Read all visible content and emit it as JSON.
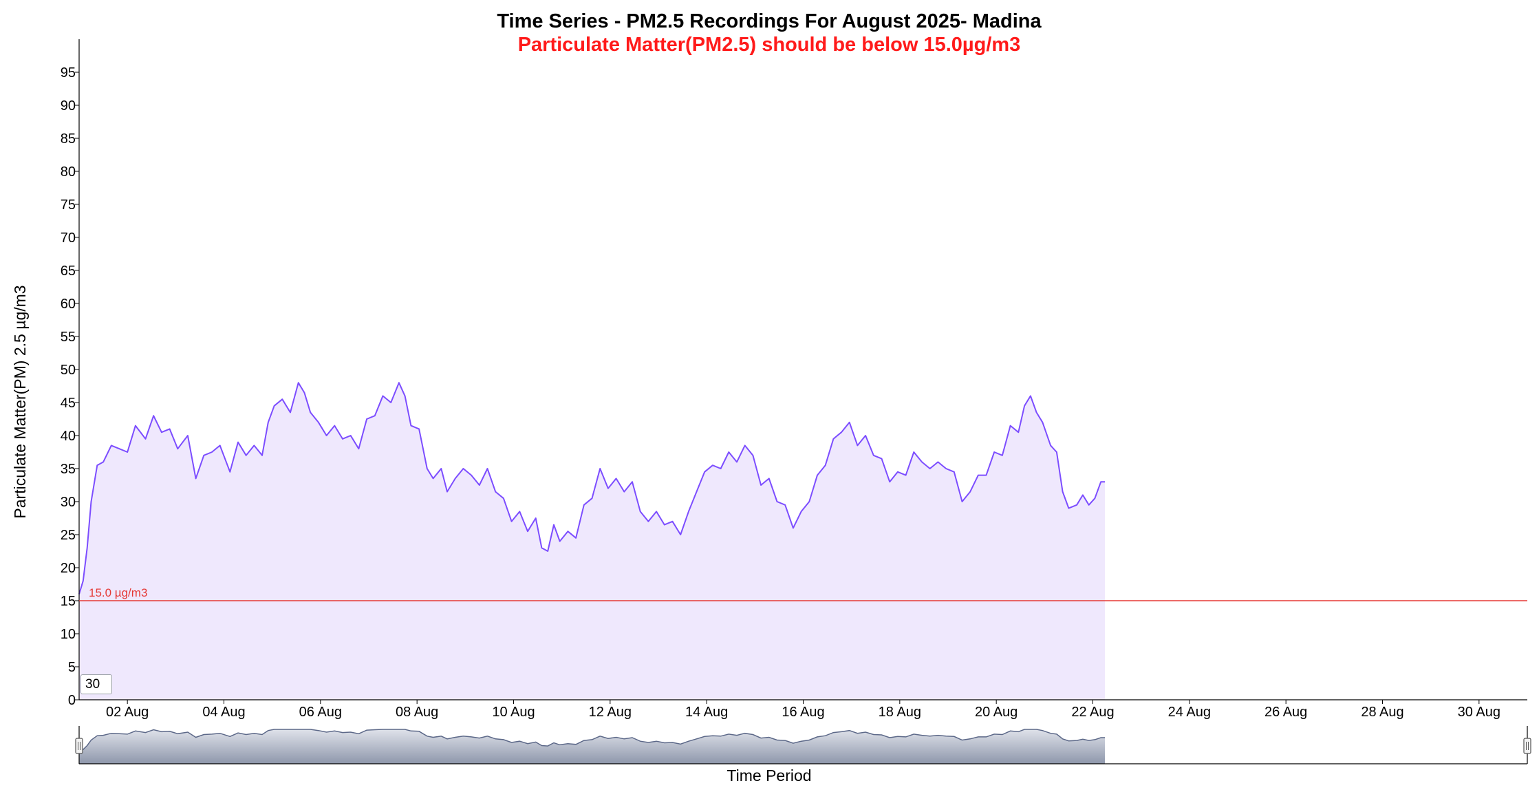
{
  "chart_data": {
    "type": "area",
    "title": "Time Series - PM2.5 Recordings For August 2025- Madina",
    "subtitle": "Particulate Matter(PM2.5) should be below 15.0µg/m3",
    "xlabel": "Time Period",
    "ylabel": "Particulate Matter(PM) 2.5 µg/m3",
    "ylim": [
      0,
      100
    ],
    "yticks": [
      0,
      5,
      10,
      15,
      20,
      25,
      30,
      35,
      40,
      45,
      50,
      55,
      60,
      65,
      70,
      75,
      80,
      85,
      90,
      95
    ],
    "xlim": [
      "2025-08-01",
      "2025-08-31"
    ],
    "xticks": [
      {
        "date": "2025-08-02",
        "label": "02 Aug"
      },
      {
        "date": "2025-08-04",
        "label": "04 Aug"
      },
      {
        "date": "2025-08-06",
        "label": "06 Aug"
      },
      {
        "date": "2025-08-08",
        "label": "08 Aug"
      },
      {
        "date": "2025-08-10",
        "label": "10 Aug"
      },
      {
        "date": "2025-08-12",
        "label": "12 Aug"
      },
      {
        "date": "2025-08-14",
        "label": "14 Aug"
      },
      {
        "date": "2025-08-16",
        "label": "16 Aug"
      },
      {
        "date": "2025-08-18",
        "label": "18 Aug"
      },
      {
        "date": "2025-08-20",
        "label": "20 Aug"
      },
      {
        "date": "2025-08-22",
        "label": "22 Aug"
      },
      {
        "date": "2025-08-24",
        "label": "24 Aug"
      },
      {
        "date": "2025-08-26",
        "label": "26 Aug"
      },
      {
        "date": "2025-08-28",
        "label": "28 Aug"
      },
      {
        "date": "2025-08-30",
        "label": "30 Aug"
      }
    ],
    "threshold": {
      "value": 15.0,
      "label": "15.0 µg/m3",
      "color": "#e53935"
    },
    "series": [
      {
        "color": "#7c4dff",
        "fill": "#efe8fd",
        "points": [
          [
            "2025-08-01 00:00",
            16
          ],
          [
            "2025-08-01 02:00",
            18
          ],
          [
            "2025-08-01 04:00",
            23
          ],
          [
            "2025-08-01 06:00",
            30
          ],
          [
            "2025-08-01 09:00",
            35.5
          ],
          [
            "2025-08-01 12:00",
            36
          ],
          [
            "2025-08-01 16:00",
            38.5
          ],
          [
            "2025-08-01 20:00",
            38
          ],
          [
            "2025-08-02 00:00",
            37.5
          ],
          [
            "2025-08-02 04:00",
            41.5
          ],
          [
            "2025-08-02 09:00",
            39.5
          ],
          [
            "2025-08-02 13:00",
            43
          ],
          [
            "2025-08-02 17:00",
            40.5
          ],
          [
            "2025-08-02 21:00",
            41
          ],
          [
            "2025-08-03 01:00",
            38
          ],
          [
            "2025-08-03 06:00",
            40
          ],
          [
            "2025-08-03 10:00",
            33.5
          ],
          [
            "2025-08-03 14:00",
            37
          ],
          [
            "2025-08-03 18:00",
            37.5
          ],
          [
            "2025-08-03 22:00",
            38.5
          ],
          [
            "2025-08-04 03:00",
            34.5
          ],
          [
            "2025-08-04 07:00",
            39
          ],
          [
            "2025-08-04 11:00",
            37
          ],
          [
            "2025-08-04 15:00",
            38.5
          ],
          [
            "2025-08-04 19:00",
            37
          ],
          [
            "2025-08-04 22:00",
            42
          ],
          [
            "2025-08-05 01:00",
            44.5
          ],
          [
            "2025-08-05 05:00",
            45.5
          ],
          [
            "2025-08-05 09:00",
            43.5
          ],
          [
            "2025-08-05 13:00",
            48
          ],
          [
            "2025-08-05 16:00",
            46.5
          ],
          [
            "2025-08-05 19:00",
            43.5
          ],
          [
            "2025-08-05 23:00",
            42
          ],
          [
            "2025-08-06 03:00",
            40
          ],
          [
            "2025-08-06 07:00",
            41.5
          ],
          [
            "2025-08-06 11:00",
            39.5
          ],
          [
            "2025-08-06 15:00",
            40
          ],
          [
            "2025-08-06 19:00",
            38
          ],
          [
            "2025-08-06 23:00",
            42.5
          ],
          [
            "2025-08-07 03:00",
            43
          ],
          [
            "2025-08-07 07:00",
            46
          ],
          [
            "2025-08-07 11:00",
            45
          ],
          [
            "2025-08-07 15:00",
            48
          ],
          [
            "2025-08-07 18:00",
            46
          ],
          [
            "2025-08-07 21:00",
            41.5
          ],
          [
            "2025-08-08 01:00",
            41
          ],
          [
            "2025-08-08 05:00",
            35
          ],
          [
            "2025-08-08 08:00",
            33.5
          ],
          [
            "2025-08-08 12:00",
            35
          ],
          [
            "2025-08-08 15:00",
            31.5
          ],
          [
            "2025-08-08 19:00",
            33.5
          ],
          [
            "2025-08-08 23:00",
            35
          ],
          [
            "2025-08-09 03:00",
            34
          ],
          [
            "2025-08-09 07:00",
            32.5
          ],
          [
            "2025-08-09 11:00",
            35
          ],
          [
            "2025-08-09 15:00",
            31.5
          ],
          [
            "2025-08-09 19:00",
            30.5
          ],
          [
            "2025-08-09 23:00",
            27
          ],
          [
            "2025-08-10 03:00",
            28.5
          ],
          [
            "2025-08-10 07:00",
            25.5
          ],
          [
            "2025-08-10 11:00",
            27.5
          ],
          [
            "2025-08-10 14:00",
            23
          ],
          [
            "2025-08-10 17:00",
            22.5
          ],
          [
            "2025-08-10 20:00",
            26.5
          ],
          [
            "2025-08-10 23:00",
            24
          ],
          [
            "2025-08-11 03:00",
            25.5
          ],
          [
            "2025-08-11 07:00",
            24.5
          ],
          [
            "2025-08-11 11:00",
            29.5
          ],
          [
            "2025-08-11 15:00",
            30.5
          ],
          [
            "2025-08-11 19:00",
            35
          ],
          [
            "2025-08-11 23:00",
            32
          ],
          [
            "2025-08-12 03:00",
            33.5
          ],
          [
            "2025-08-12 07:00",
            31.5
          ],
          [
            "2025-08-12 11:00",
            33
          ],
          [
            "2025-08-12 15:00",
            28.5
          ],
          [
            "2025-08-12 19:00",
            27
          ],
          [
            "2025-08-12 23:00",
            28.5
          ],
          [
            "2025-08-13 03:00",
            26.5
          ],
          [
            "2025-08-13 07:00",
            27
          ],
          [
            "2025-08-13 11:00",
            25
          ],
          [
            "2025-08-13 15:00",
            28.5
          ],
          [
            "2025-08-13 19:00",
            31.5
          ],
          [
            "2025-08-13 23:00",
            34.5
          ],
          [
            "2025-08-14 03:00",
            35.5
          ],
          [
            "2025-08-14 07:00",
            35
          ],
          [
            "2025-08-14 11:00",
            37.5
          ],
          [
            "2025-08-14 15:00",
            36
          ],
          [
            "2025-08-14 19:00",
            38.5
          ],
          [
            "2025-08-14 23:00",
            37
          ],
          [
            "2025-08-15 03:00",
            32.5
          ],
          [
            "2025-08-15 07:00",
            33.5
          ],
          [
            "2025-08-15 11:00",
            30
          ],
          [
            "2025-08-15 15:00",
            29.5
          ],
          [
            "2025-08-15 19:00",
            26
          ],
          [
            "2025-08-15 23:00",
            28.5
          ],
          [
            "2025-08-16 03:00",
            30
          ],
          [
            "2025-08-16 07:00",
            34
          ],
          [
            "2025-08-16 11:00",
            35.5
          ],
          [
            "2025-08-16 15:00",
            39.5
          ],
          [
            "2025-08-16 19:00",
            40.5
          ],
          [
            "2025-08-16 23:00",
            42
          ],
          [
            "2025-08-17 03:00",
            38.5
          ],
          [
            "2025-08-17 07:00",
            40
          ],
          [
            "2025-08-17 11:00",
            37
          ],
          [
            "2025-08-17 15:00",
            36.5
          ],
          [
            "2025-08-17 19:00",
            33
          ],
          [
            "2025-08-17 23:00",
            34.5
          ],
          [
            "2025-08-18 03:00",
            34
          ],
          [
            "2025-08-18 07:00",
            37.5
          ],
          [
            "2025-08-18 11:00",
            36
          ],
          [
            "2025-08-18 15:00",
            35
          ],
          [
            "2025-08-18 19:00",
            36
          ],
          [
            "2025-08-18 23:00",
            35
          ],
          [
            "2025-08-19 03:00",
            34.5
          ],
          [
            "2025-08-19 07:00",
            30
          ],
          [
            "2025-08-19 11:00",
            31.5
          ],
          [
            "2025-08-19 15:00",
            34
          ],
          [
            "2025-08-19 19:00",
            34
          ],
          [
            "2025-08-19 23:00",
            37.5
          ],
          [
            "2025-08-20 03:00",
            37
          ],
          [
            "2025-08-20 07:00",
            41.5
          ],
          [
            "2025-08-20 11:00",
            40.5
          ],
          [
            "2025-08-20 14:00",
            44.5
          ],
          [
            "2025-08-20 17:00",
            46
          ],
          [
            "2025-08-20 20:00",
            43.5
          ],
          [
            "2025-08-20 23:00",
            42
          ],
          [
            "2025-08-21 03:00",
            38.5
          ],
          [
            "2025-08-21 06:00",
            37.5
          ],
          [
            "2025-08-21 09:00",
            31.5
          ],
          [
            "2025-08-21 12:00",
            29
          ],
          [
            "2025-08-21 16:00",
            29.5
          ],
          [
            "2025-08-21 19:00",
            31
          ],
          [
            "2025-08-21 22:00",
            29.5
          ],
          [
            "2025-08-22 01:00",
            30.5
          ],
          [
            "2025-08-22 04:00",
            33
          ],
          [
            "2025-08-22 06:00",
            33
          ]
        ]
      }
    ],
    "navigator_range": [
      "2025-08-01",
      "2025-08-31"
    ]
  },
  "range_input": {
    "value": "30"
  }
}
